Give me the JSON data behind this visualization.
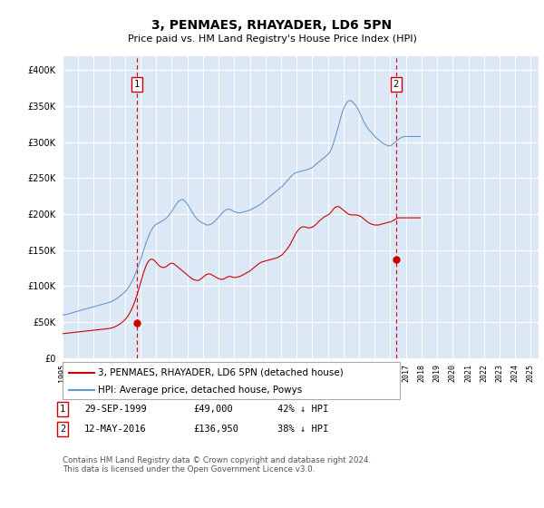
{
  "title": "3, PENMAES, RHAYADER, LD6 5PN",
  "subtitle": "Price paid vs. HM Land Registry's House Price Index (HPI)",
  "legend_line1": "3, PENMAES, RHAYADER, LD6 5PN (detached house)",
  "legend_line2": "HPI: Average price, detached house, Powys",
  "footer": "Contains HM Land Registry data © Crown copyright and database right 2024.\nThis data is licensed under the Open Government Licence v3.0.",
  "sale1_date": "29-SEP-1999",
  "sale1_price": "£49,000",
  "sale1_hpi": "42% ↓ HPI",
  "sale1_year": 1999.75,
  "sale1_value": 49000,
  "sale2_date": "12-MAY-2016",
  "sale2_price": "£136,950",
  "sale2_hpi": "38% ↓ HPI",
  "sale2_year": 2016.37,
  "sale2_value": 136950,
  "red_color": "#cc0000",
  "blue_color": "#6699cc",
  "bg_color": "#dce8f5",
  "grid_color": "#ffffff",
  "ylim": [
    0,
    420000
  ],
  "yticks": [
    0,
    50000,
    100000,
    150000,
    200000,
    250000,
    300000,
    350000,
    400000
  ],
  "hpi_monthly": [
    60000,
    60200,
    60400,
    60800,
    61200,
    61600,
    62200,
    62800,
    63500,
    64000,
    64500,
    65000,
    65500,
    66000,
    66500,
    67000,
    67500,
    68000,
    68500,
    69000,
    69500,
    70000,
    70500,
    71000,
    71500,
    72000,
    72500,
    73000,
    73500,
    74000,
    74500,
    75000,
    75500,
    76000,
    76500,
    77000,
    77500,
    78200,
    79000,
    80000,
    81000,
    82000,
    83200,
    84500,
    86000,
    87500,
    89000,
    90500,
    92000,
    94000,
    96500,
    99000,
    102000,
    105500,
    109000,
    113000,
    117500,
    122000,
    127000,
    132000,
    137000,
    142500,
    148000,
    153500,
    159000,
    164000,
    168500,
    173000,
    177000,
    180000,
    182500,
    184500,
    186000,
    187000,
    188000,
    189000,
    190000,
    191000,
    192000,
    193500,
    195000,
    197000,
    199000,
    201500,
    204000,
    207000,
    210000,
    213000,
    215500,
    217500,
    219000,
    220000,
    220500,
    220000,
    218500,
    216500,
    214000,
    211000,
    208000,
    205000,
    202000,
    199000,
    196500,
    194000,
    192000,
    190500,
    189500,
    188500,
    187500,
    186500,
    185500,
    185000,
    185000,
    185500,
    186000,
    187000,
    188500,
    190000,
    192000,
    194000,
    196000,
    198000,
    200000,
    202000,
    204000,
    205500,
    206500,
    207000,
    207000,
    206500,
    205500,
    204500,
    203500,
    203000,
    202500,
    202000,
    202000,
    202000,
    202500,
    203000,
    203500,
    204000,
    204500,
    205000,
    205500,
    206500,
    207500,
    208500,
    209500,
    210500,
    211500,
    212500,
    213500,
    215000,
    216500,
    218000,
    219500,
    221000,
    222500,
    224000,
    225500,
    227000,
    228500,
    230000,
    231500,
    233000,
    234500,
    236000,
    237500,
    239000,
    241000,
    243000,
    245000,
    247000,
    249000,
    251000,
    253000,
    255000,
    256500,
    257500,
    258000,
    258500,
    259000,
    259500,
    260000,
    260500,
    261000,
    261500,
    262000,
    262500,
    263000,
    264000,
    265000,
    266500,
    268000,
    269500,
    271000,
    272500,
    274000,
    275500,
    277000,
    278500,
    280000,
    281500,
    283000,
    285000,
    288000,
    292000,
    297000,
    303000,
    309000,
    315000,
    321000,
    328000,
    335000,
    341000,
    346000,
    350000,
    353500,
    356000,
    357500,
    358000,
    357500,
    356000,
    354000,
    352000,
    349500,
    346500,
    343000,
    339000,
    335000,
    331000,
    327500,
    324000,
    321000,
    318500,
    316500,
    314500,
    312500,
    310500,
    308500,
    306500,
    305000,
    303500,
    302000,
    300500,
    299000,
    298000,
    297000,
    296000,
    295500,
    295000,
    295000,
    296000,
    297500,
    299000,
    300500,
    302000,
    303500,
    305000,
    306000,
    307000,
    307500,
    308000,
    308000,
    308000,
    308000,
    308000,
    308000,
    308000,
    308000,
    308000,
    308000,
    308000,
    308000,
    308000
  ],
  "red_monthly": [
    34000,
    34200,
    34400,
    34500,
    34700,
    34900,
    35100,
    35300,
    35500,
    35700,
    35900,
    36100,
    36300,
    36500,
    36700,
    36900,
    37100,
    37300,
    37500,
    37700,
    37900,
    38100,
    38300,
    38500,
    38700,
    38900,
    39100,
    39300,
    39500,
    39700,
    39900,
    40100,
    40300,
    40500,
    40700,
    40900,
    41200,
    41600,
    42100,
    42700,
    43400,
    44200,
    45100,
    46200,
    47400,
    48700,
    50200,
    51800,
    53500,
    55500,
    58000,
    60800,
    64000,
    67500,
    71500,
    76000,
    81000,
    86500,
    92500,
    98500,
    105000,
    111000,
    117000,
    122500,
    127500,
    131500,
    134500,
    136500,
    137500,
    137500,
    136500,
    135000,
    133000,
    131000,
    129000,
    127500,
    126500,
    126000,
    126000,
    126500,
    127500,
    129000,
    130500,
    131500,
    132000,
    131500,
    130500,
    129000,
    127500,
    126000,
    124500,
    123000,
    121500,
    120000,
    118500,
    117000,
    115500,
    114000,
    112500,
    111000,
    110000,
    109000,
    108500,
    108000,
    108000,
    108500,
    109500,
    111000,
    112500,
    114000,
    115500,
    116500,
    117000,
    117000,
    116500,
    115500,
    114500,
    113500,
    112500,
    111500,
    110500,
    110000,
    109500,
    109500,
    110000,
    111000,
    112000,
    113000,
    113500,
    113500,
    113000,
    112500,
    112000,
    112000,
    112500,
    113000,
    113500,
    114000,
    115000,
    116000,
    117000,
    118000,
    119000,
    120000,
    121000,
    122500,
    124000,
    125500,
    127000,
    128500,
    130000,
    131500,
    132500,
    133500,
    134000,
    134500,
    135000,
    135500,
    136000,
    136500,
    137000,
    137500,
    138000,
    138500,
    139000,
    139500,
    140500,
    141500,
    142500,
    144000,
    146000,
    148000,
    150000,
    152500,
    155000,
    158000,
    161500,
    165000,
    168500,
    172000,
    175000,
    177500,
    179500,
    181000,
    182000,
    182500,
    182500,
    182000,
    181500,
    181000,
    181000,
    181500,
    182000,
    183000,
    184500,
    186000,
    188000,
    190000,
    191500,
    193000,
    194500,
    196000,
    197000,
    198000,
    199000,
    200000,
    202000,
    204000,
    206500,
    208500,
    210000,
    210500,
    210500,
    210000,
    208500,
    207000,
    205500,
    204000,
    202500,
    201000,
    200000,
    199500,
    199000,
    199000,
    199000,
    199000,
    199000,
    198500,
    198000,
    197000,
    196000,
    194500,
    193000,
    191500,
    190000,
    188500,
    187500,
    186500,
    186000,
    185500,
    185000,
    185000,
    185000,
    185000,
    185500,
    186000,
    186500,
    187000,
    187500,
    188000,
    188500,
    189000,
    189000,
    190000,
    191000,
    192000,
    193000,
    194000,
    195000,
    195000,
    195000,
    195000,
    195000,
    195000,
    195000,
    195000,
    195000,
    195000,
    195000,
    195000,
    195000,
    195000,
    195000,
    195000,
    195000,
    195000
  ],
  "start_year": 1995,
  "end_year": 2025
}
